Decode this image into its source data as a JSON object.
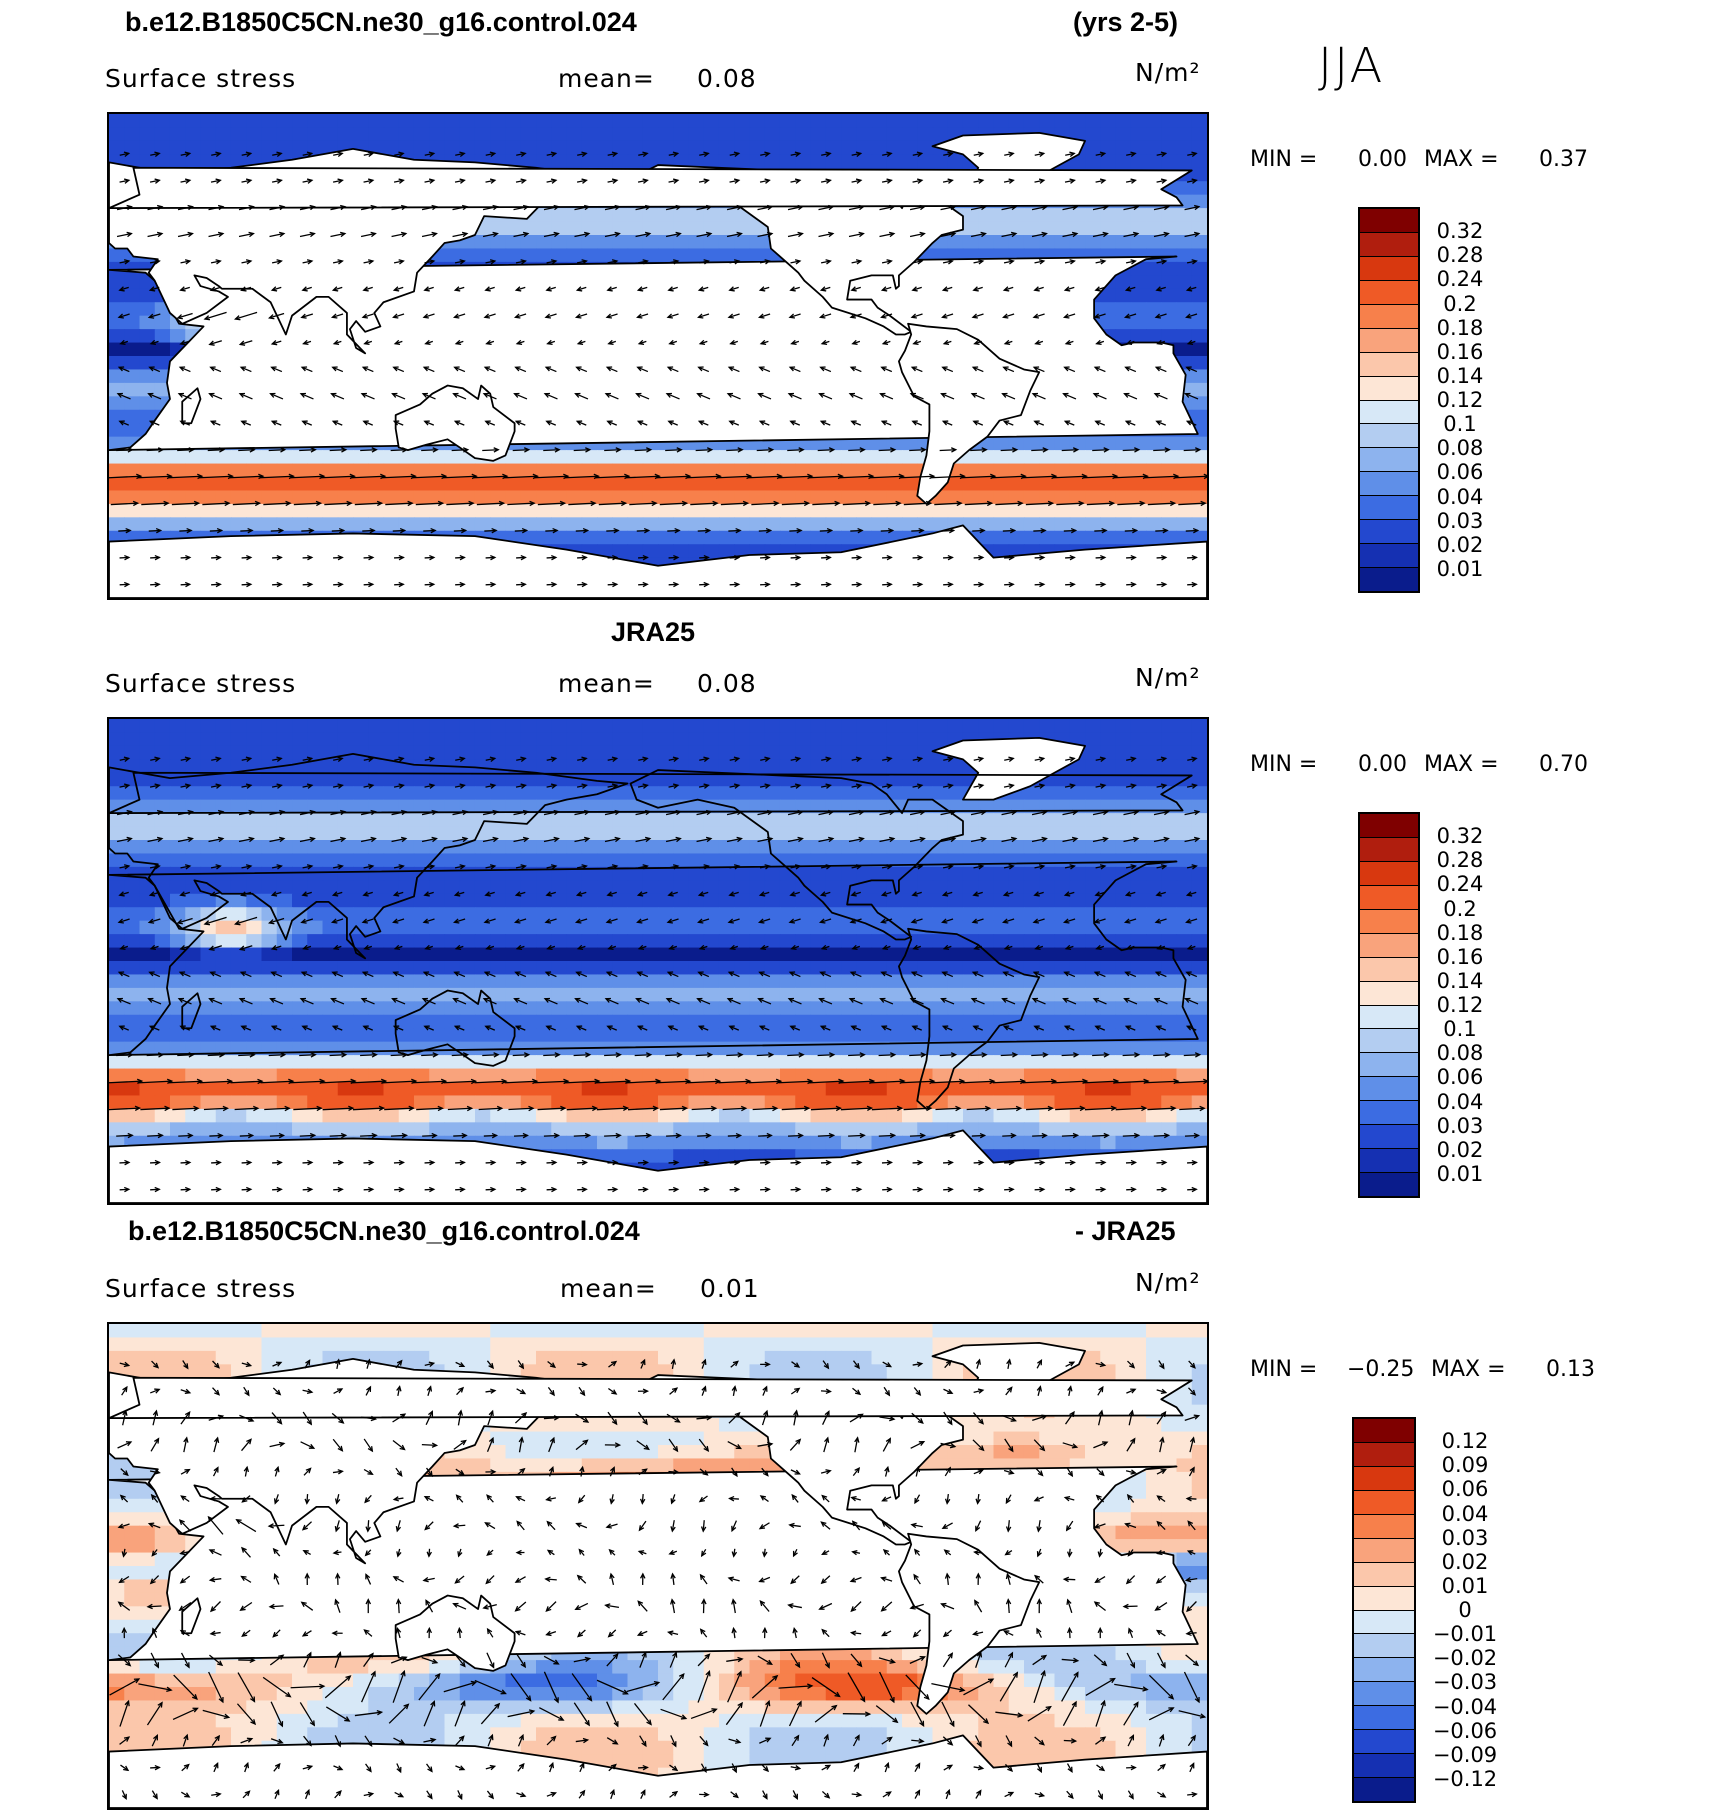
{
  "season": "JJA",
  "panels": [
    {
      "title_left": "b.e12.B1850C5CN.ne30_g16.control.024",
      "title_right": "(yrs 2-5)",
      "variable": "Surface stress",
      "mean_label": "mean=",
      "mean_value": "0.08",
      "units": "N/m²",
      "min_label": "MIN =",
      "min_value": "0.00",
      "max_label": "MAX =",
      "max_value": "0.37",
      "colorbar": {
        "labels": [
          "0.32",
          "0.28",
          "0.24",
          "0.2",
          "0.18",
          "0.16",
          "0.14",
          "0.12",
          "0.1",
          "0.08",
          "0.06",
          "0.04",
          "0.03",
          "0.02",
          "0.01"
        ],
        "colors": [
          "#7f0000",
          "#b01e0e",
          "#d8380f",
          "#ef5a26",
          "#f7804b",
          "#f9a37c",
          "#fbc7ab",
          "#fde6d6",
          "#d7e8f7",
          "#b3cdf1",
          "#8db3ee",
          "#5f8fe8",
          "#3c6ce2",
          "#2348cf",
          "#1530b2",
          "#0a1c8c"
        ]
      }
    },
    {
      "title_left": "JRA25",
      "title_right": "",
      "variable": "Surface stress",
      "mean_label": "mean=",
      "mean_value": "0.08",
      "units": "N/m²",
      "min_label": "MIN =",
      "min_value": "0.00",
      "max_label": "MAX =",
      "max_value": "0.70",
      "colorbar": {
        "labels": [
          "0.32",
          "0.28",
          "0.24",
          "0.2",
          "0.18",
          "0.16",
          "0.14",
          "0.12",
          "0.1",
          "0.08",
          "0.06",
          "0.04",
          "0.03",
          "0.02",
          "0.01"
        ],
        "colors": [
          "#7f0000",
          "#b01e0e",
          "#d8380f",
          "#ef5a26",
          "#f7804b",
          "#f9a37c",
          "#fbc7ab",
          "#fde6d6",
          "#d7e8f7",
          "#b3cdf1",
          "#8db3ee",
          "#5f8fe8",
          "#3c6ce2",
          "#2348cf",
          "#1530b2",
          "#0a1c8c"
        ]
      }
    },
    {
      "title_left": "b.e12.B1850C5CN.ne30_g16.control.024",
      "title_right": "- JRA25",
      "variable": "Surface stress",
      "mean_label": "mean=",
      "mean_value": "0.01",
      "units": "N/m²",
      "min_label": "MIN =",
      "min_value": "−0.25",
      "max_label": "MAX =",
      "max_value": "0.13",
      "colorbar": {
        "labels": [
          "0.12",
          "0.09",
          "0.06",
          "0.04",
          "0.03",
          "0.02",
          "0.01",
          "0",
          "−0.01",
          "−0.02",
          "−0.03",
          "−0.04",
          "−0.06",
          "−0.09",
          "−0.12"
        ],
        "colors": [
          "#7f0000",
          "#b01e0e",
          "#d8380f",
          "#ef5a26",
          "#f7804b",
          "#f9a37c",
          "#fbc7ab",
          "#fde6d6",
          "#d7e8f7",
          "#b3cdf1",
          "#8db3ee",
          "#5f8fe8",
          "#3c6ce2",
          "#2348cf",
          "#1530b2",
          "#0a1c8c"
        ]
      }
    }
  ]
}
